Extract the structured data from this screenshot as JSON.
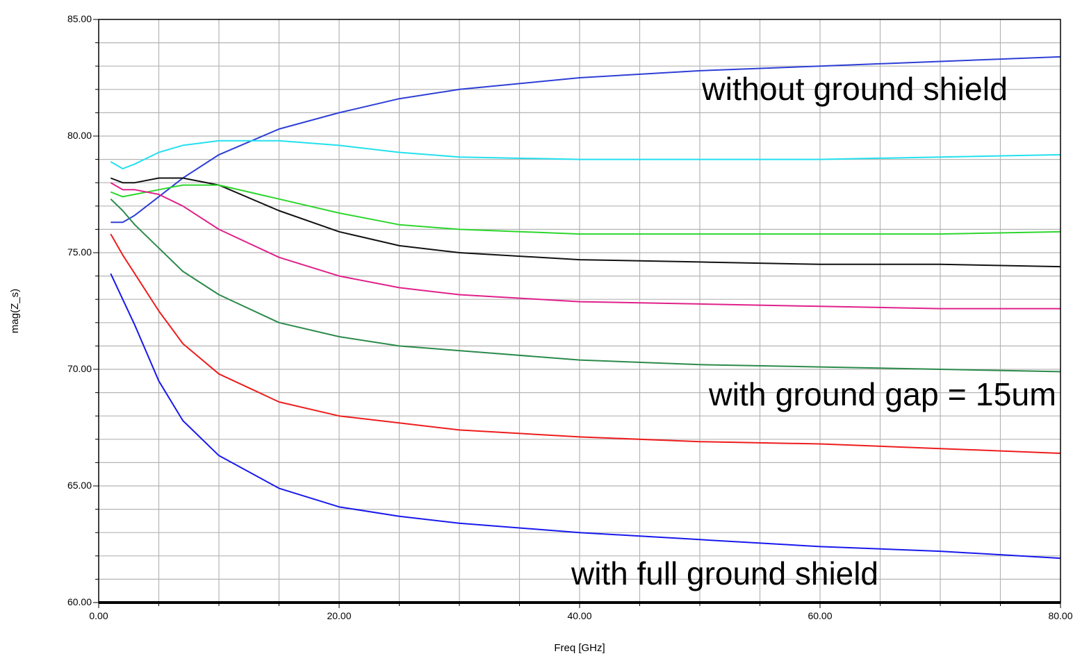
{
  "chart_data": {
    "type": "line",
    "title": "",
    "xlabel": "Freq [GHz]",
    "ylabel": "mag(Z_s)",
    "xlim": [
      0,
      80
    ],
    "ylim": [
      60,
      85
    ],
    "grid": true,
    "x_tick_labels": [
      "0.00",
      "20.00",
      "40.00",
      "60.00",
      "80.00"
    ],
    "y_tick_labels": [
      "60.00",
      "65.00",
      "70.00",
      "75.00",
      "80.00",
      "85.00"
    ],
    "annotations": [
      {
        "text": "without ground shield"
      },
      {
        "text": "with ground gap = 15um"
      },
      {
        "text": "with full ground shield"
      }
    ],
    "series": [
      {
        "color": "#2d3fd6",
        "x": [
          1,
          2,
          3,
          5,
          7,
          10,
          15,
          20,
          25,
          30,
          40,
          50,
          60,
          70,
          80
        ],
        "y": [
          76.3,
          76.3,
          76.6,
          77.4,
          78.2,
          79.2,
          80.3,
          81.0,
          81.6,
          82.0,
          82.5,
          82.8,
          83.0,
          83.2,
          83.4
        ]
      },
      {
        "color": "#22e0ee",
        "x": [
          1,
          2,
          3,
          5,
          7,
          10,
          15,
          20,
          25,
          30,
          40,
          50,
          60,
          70,
          80
        ],
        "y": [
          78.9,
          78.6,
          78.8,
          79.3,
          79.6,
          79.8,
          79.8,
          79.6,
          79.3,
          79.1,
          79.0,
          79.0,
          79.0,
          79.1,
          79.2
        ]
      },
      {
        "color": "#111111",
        "x": [
          1,
          2,
          3,
          5,
          7,
          10,
          15,
          20,
          25,
          30,
          40,
          50,
          60,
          70,
          80
        ],
        "y": [
          78.2,
          78.0,
          78.0,
          78.2,
          78.2,
          77.9,
          76.8,
          75.9,
          75.3,
          75.0,
          74.7,
          74.6,
          74.5,
          74.5,
          74.4
        ]
      },
      {
        "color": "#2cd62c",
        "x": [
          1,
          2,
          3,
          5,
          7,
          10,
          15,
          20,
          25,
          30,
          40,
          50,
          60,
          70,
          80
        ],
        "y": [
          77.6,
          77.4,
          77.5,
          77.7,
          77.9,
          77.9,
          77.3,
          76.7,
          76.2,
          76.0,
          75.8,
          75.8,
          75.8,
          75.8,
          75.9
        ]
      },
      {
        "color": "#e0208a",
        "x": [
          1,
          2,
          3,
          5,
          7,
          10,
          15,
          20,
          25,
          30,
          40,
          50,
          60,
          70,
          80
        ],
        "y": [
          78.0,
          77.7,
          77.7,
          77.5,
          77.0,
          76.0,
          74.8,
          74.0,
          73.5,
          73.2,
          72.9,
          72.8,
          72.7,
          72.6,
          72.6
        ]
      },
      {
        "color": "#2a8a4a",
        "x": [
          1,
          2,
          3,
          5,
          7,
          10,
          15,
          20,
          25,
          30,
          40,
          50,
          60,
          70,
          80
        ],
        "y": [
          77.3,
          76.8,
          76.2,
          75.2,
          74.2,
          73.2,
          72.0,
          71.4,
          71.0,
          70.8,
          70.4,
          70.2,
          70.1,
          70.0,
          69.9
        ]
      },
      {
        "color": "#ee1c1c",
        "x": [
          1,
          2,
          3,
          5,
          7,
          10,
          15,
          20,
          25,
          30,
          40,
          50,
          60,
          70,
          80
        ],
        "y": [
          75.8,
          74.9,
          74.1,
          72.5,
          71.1,
          69.8,
          68.6,
          68.0,
          67.7,
          67.4,
          67.1,
          66.9,
          66.8,
          66.6,
          66.4
        ]
      },
      {
        "color": "#1818ee",
        "x": [
          1,
          2,
          3,
          5,
          7,
          10,
          15,
          20,
          25,
          30,
          40,
          50,
          60,
          70,
          80
        ],
        "y": [
          74.1,
          73.0,
          71.9,
          69.5,
          67.8,
          66.3,
          64.9,
          64.1,
          63.7,
          63.4,
          63.0,
          62.7,
          62.4,
          62.2,
          61.9
        ]
      }
    ]
  }
}
